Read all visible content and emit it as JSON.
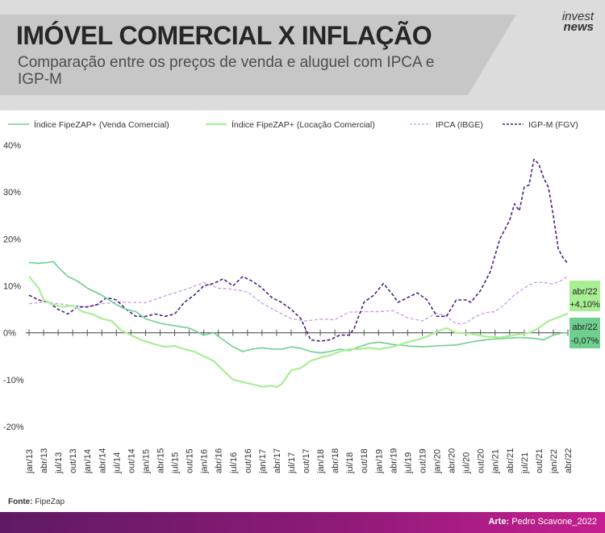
{
  "header": {
    "title": "IMÓVEL COMERCIAL X INFLAÇÃO",
    "subtitle": "Comparação entre os preços de venda e aluguel com IPCA e IGP-M",
    "logo_line1": "invest",
    "logo_line2": "news"
  },
  "footer": {
    "source_label": "Fonte:",
    "source_value": "FipeZap",
    "art_label": "Arte:",
    "art_value": "Pedro Scavone_2022"
  },
  "annotations": {
    "locacao_date": "abr/22",
    "locacao_value": "+4,10%",
    "venda_date": "abr/22",
    "venda_value": "-0,07%"
  },
  "colors": {
    "venda": "#6fcf8f",
    "locacao": "#a8ef94",
    "ipca": "#c89be6",
    "igpm": "#4b2180",
    "header_bg": "#dcdcdc",
    "footer_gradient": [
      "#5f1a63",
      "#c41f8f"
    ]
  },
  "chart_data": {
    "type": "line",
    "title": "IMÓVEL COMERCIAL X INFLAÇÃO",
    "subtitle": "Comparação entre os preços de venda e aluguel com IPCA e IGP-M",
    "xlabel": "",
    "ylabel": "",
    "ylim": [
      -20,
      40
    ],
    "yticks": [
      "40%",
      "30%",
      "20%",
      "10%",
      "0%",
      "-10%",
      "-20%"
    ],
    "ytick_values": [
      40,
      30,
      20,
      10,
      0,
      -10,
      -20
    ],
    "xticks": [
      "jan/13",
      "abr/13",
      "jul/13",
      "out/13",
      "jan/14",
      "abr/14",
      "jul/14",
      "out/14",
      "jan/15",
      "abr/15",
      "jul/15",
      "out/15",
      "jan/16",
      "abr/16",
      "jul/16",
      "out/16",
      "jan/17",
      "abr/17",
      "jul/17",
      "out/17",
      "jan/18",
      "abr/18",
      "jul/18",
      "out/18",
      "jan/19",
      "abr/19",
      "jul/19",
      "out/19",
      "jan/20",
      "abr/20",
      "jul/20",
      "out/20",
      "jan/21",
      "abr/21",
      "jul/21",
      "out/21",
      "jan/22",
      "abr/22"
    ],
    "x_unit": "months since jan/13 (0 = jan/13, 111 = abr/22)",
    "grid": false,
    "legend_position": "top",
    "series": [
      {
        "name": "Índice FipeZAP+ (Venda Comercial)",
        "style": "solid",
        "points": [
          [
            0,
            15
          ],
          [
            2,
            14.8
          ],
          [
            4,
            15
          ],
          [
            5,
            15.2
          ],
          [
            6,
            14
          ],
          [
            8,
            12
          ],
          [
            10,
            11
          ],
          [
            12,
            9.5
          ],
          [
            15,
            8
          ],
          [
            18,
            6
          ],
          [
            20,
            5
          ],
          [
            22,
            4.5
          ],
          [
            24,
            3
          ],
          [
            27,
            2
          ],
          [
            30,
            1.5
          ],
          [
            33,
            1
          ],
          [
            36,
            -0.5
          ],
          [
            38,
            0
          ],
          [
            40,
            -1.5
          ],
          [
            42,
            -3
          ],
          [
            44,
            -4
          ],
          [
            46,
            -3.5
          ],
          [
            48,
            -3.2
          ],
          [
            50,
            -3.5
          ],
          [
            52,
            -3.5
          ],
          [
            54,
            -3
          ],
          [
            56,
            -3.3
          ],
          [
            58,
            -4
          ],
          [
            60,
            -4.3
          ],
          [
            62,
            -4
          ],
          [
            64,
            -3.5
          ],
          [
            66,
            -3.8
          ],
          [
            68,
            -3
          ],
          [
            70,
            -2.3
          ],
          [
            72,
            -2
          ],
          [
            75,
            -2.5
          ],
          [
            78,
            -2.8
          ],
          [
            81,
            -3
          ],
          [
            84,
            -2.8
          ],
          [
            88,
            -2.6
          ],
          [
            92,
            -1.8
          ],
          [
            95,
            -1.4
          ],
          [
            98,
            -1.2
          ],
          [
            101,
            -1
          ],
          [
            104,
            -1.2
          ],
          [
            106,
            -1.5
          ],
          [
            108,
            -0.5
          ],
          [
            110,
            0
          ],
          [
            111,
            -0.07
          ]
        ]
      },
      {
        "name": "Índice FipeZAP+ (Locação Comercial)",
        "style": "solid",
        "points": [
          [
            0,
            12
          ],
          [
            2,
            9.5
          ],
          [
            3,
            7
          ],
          [
            5,
            6
          ],
          [
            7,
            5.5
          ],
          [
            9,
            5.8
          ],
          [
            11,
            4.5
          ],
          [
            13,
            4
          ],
          [
            15,
            3
          ],
          [
            17,
            2.5
          ],
          [
            19,
            0.5
          ],
          [
            21,
            -0.5
          ],
          [
            23,
            -1.5
          ],
          [
            26,
            -2.5
          ],
          [
            28,
            -3
          ],
          [
            30,
            -2.8
          ],
          [
            32,
            -3.5
          ],
          [
            34,
            -4
          ],
          [
            36,
            -5
          ],
          [
            38,
            -6
          ],
          [
            40,
            -8
          ],
          [
            42,
            -10
          ],
          [
            44,
            -10.5
          ],
          [
            46,
            -11
          ],
          [
            48,
            -11.5
          ],
          [
            50,
            -11.3
          ],
          [
            51,
            -11.6
          ],
          [
            52,
            -11
          ],
          [
            54,
            -8
          ],
          [
            56,
            -7.5
          ],
          [
            58,
            -6
          ],
          [
            60,
            -5.3
          ],
          [
            62,
            -4.8
          ],
          [
            64,
            -4
          ],
          [
            66,
            -3.5
          ],
          [
            68,
            -3.5
          ],
          [
            70,
            -3.2
          ],
          [
            72,
            -3.5
          ],
          [
            75,
            -3
          ],
          [
            78,
            -2
          ],
          [
            80,
            -1.5
          ],
          [
            82,
            -0.8
          ],
          [
            84,
            0.2
          ],
          [
            86,
            1
          ],
          [
            88,
            0
          ],
          [
            91,
            -0.2
          ],
          [
            94,
            -0.8
          ],
          [
            97,
            -1
          ],
          [
            100,
            -0.5
          ],
          [
            103,
            0
          ],
          [
            105,
            1
          ],
          [
            107,
            2.5
          ],
          [
            109,
            3.3
          ],
          [
            111,
            4.1
          ]
        ]
      },
      {
        "name": "IPCA (IBGE)",
        "style": "dashed",
        "points": [
          [
            0,
            6.2
          ],
          [
            3,
            6.6
          ],
          [
            6,
            6.2
          ],
          [
            9,
            5.8
          ],
          [
            12,
            5.6
          ],
          [
            15,
            6.2
          ],
          [
            18,
            6.5
          ],
          [
            21,
            6.5
          ],
          [
            24,
            6.4
          ],
          [
            27,
            7.5
          ],
          [
            30,
            8.5
          ],
          [
            33,
            9.5
          ],
          [
            36,
            10.7
          ],
          [
            39,
            9.5
          ],
          [
            42,
            9.3
          ],
          [
            45,
            8.7
          ],
          [
            48,
            6.3
          ],
          [
            51,
            4.6
          ],
          [
            54,
            3
          ],
          [
            57,
            2.5
          ],
          [
            60,
            2.9
          ],
          [
            63,
            2.8
          ],
          [
            66,
            4.4
          ],
          [
            69,
            4.5
          ],
          [
            72,
            4.5
          ],
          [
            75,
            4.7
          ],
          [
            78,
            3.2
          ],
          [
            81,
            2.5
          ],
          [
            84,
            4.2
          ],
          [
            86,
            3.5
          ],
          [
            88,
            1.9
          ],
          [
            90,
            2.1
          ],
          [
            92,
            3.5
          ],
          [
            94,
            4.3
          ],
          [
            96,
            4.5
          ],
          [
            98,
            6.1
          ],
          [
            100,
            8.1
          ],
          [
            102,
            9.5
          ],
          [
            104,
            10.7
          ],
          [
            106,
            10.7
          ],
          [
            108,
            10.4
          ],
          [
            110,
            11.3
          ],
          [
            111,
            12.1
          ]
        ]
      },
      {
        "name": "IGP-M (FGV)",
        "style": "dashed",
        "points": [
          [
            0,
            8
          ],
          [
            2,
            7
          ],
          [
            4,
            6.5
          ],
          [
            6,
            5
          ],
          [
            8,
            4
          ],
          [
            10,
            5.5
          ],
          [
            12,
            5.5
          ],
          [
            14,
            6
          ],
          [
            16,
            7.5
          ],
          [
            18,
            7
          ],
          [
            20,
            5
          ],
          [
            22,
            3.5
          ],
          [
            24,
            3.5
          ],
          [
            26,
            4
          ],
          [
            28,
            3.5
          ],
          [
            30,
            4
          ],
          [
            32,
            6.5
          ],
          [
            34,
            8
          ],
          [
            36,
            10
          ],
          [
            38,
            10.5
          ],
          [
            40,
            11.5
          ],
          [
            42,
            10
          ],
          [
            44,
            12
          ],
          [
            46,
            11
          ],
          [
            48,
            9.5
          ],
          [
            50,
            7.5
          ],
          [
            52,
            6.5
          ],
          [
            54,
            5
          ],
          [
            56,
            3
          ],
          [
            58,
            -1.5
          ],
          [
            60,
            -1.8
          ],
          [
            62,
            -1.5
          ],
          [
            64,
            -0.5
          ],
          [
            66,
            -0.5
          ],
          [
            67,
            1
          ],
          [
            69,
            6.5
          ],
          [
            71,
            8
          ],
          [
            73,
            10.5
          ],
          [
            75,
            8
          ],
          [
            76,
            6.5
          ],
          [
            78,
            7.5
          ],
          [
            80,
            8.5
          ],
          [
            82,
            7
          ],
          [
            84,
            3.5
          ],
          [
            86,
            3.5
          ],
          [
            88,
            7
          ],
          [
            90,
            7
          ],
          [
            91,
            6.5
          ],
          [
            93,
            9
          ],
          [
            95,
            13
          ],
          [
            97,
            20
          ],
          [
            99,
            24
          ],
          [
            100,
            27.5
          ],
          [
            101,
            26
          ],
          [
            102,
            31
          ],
          [
            103,
            31.5
          ],
          [
            104,
            37
          ],
          [
            105,
            36
          ],
          [
            106,
            33
          ],
          [
            107,
            31
          ],
          [
            108,
            25
          ],
          [
            109,
            17.9
          ],
          [
            110,
            16
          ],
          [
            111,
            14.7
          ]
        ]
      }
    ]
  }
}
